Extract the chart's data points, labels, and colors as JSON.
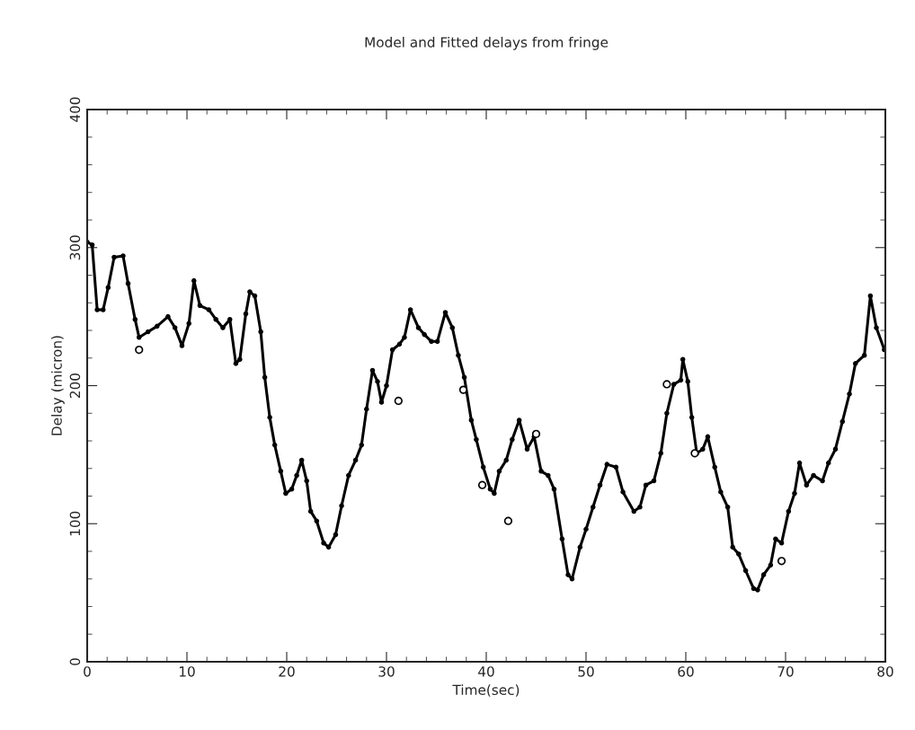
{
  "chart_data": {
    "type": "line",
    "title": "Model and Fitted delays from fringe",
    "xlabel": "Time(sec)",
    "ylabel": "Delay (micron)",
    "xlim": [
      0,
      80
    ],
    "xticks": [
      0,
      10,
      20,
      30,
      40,
      50,
      60,
      70,
      80
    ],
    "ylim": [
      0,
      400
    ],
    "yticks": [
      0,
      100,
      200,
      300,
      400
    ],
    "grid": false,
    "legend": false,
    "series": [
      {
        "color": "#000000",
        "marker": "circle",
        "line_style": "solid",
        "x": [
          0,
          0.5,
          1,
          1.6,
          2.1,
          2.7,
          3.6,
          4.1,
          4.8,
          5.2,
          6.1,
          7.0,
          8.1,
          8.8,
          9.5,
          10.2,
          10.7,
          11.3,
          12.2,
          12.9,
          13.6,
          14.3,
          14.9,
          15.3,
          15.9,
          16.3,
          16.8,
          17.4,
          17.8,
          18.3,
          18.8,
          19.4,
          19.9,
          20.5,
          21,
          21.5,
          22,
          22.4,
          23,
          23.7,
          24.2,
          24.9,
          25.5,
          26.2,
          26.9,
          27.5,
          28,
          28.6,
          29.1,
          29.5,
          30,
          30.6,
          31.3,
          31.8,
          32.4,
          33.2,
          33.8,
          34.5,
          35.1,
          35.9,
          36.6,
          37.2,
          37.8,
          38.5,
          39,
          39.7,
          40.4,
          40.8,
          41.3,
          42,
          42.6,
          43.3,
          44.1,
          44.8,
          45.5,
          46.2,
          46.8,
          47.6,
          48.2,
          48.6,
          49.4,
          50,
          50.7,
          51.4,
          52.1,
          53,
          53.7,
          54.8,
          55.4,
          56,
          56.8,
          57.5,
          58.1,
          58.8,
          59.5,
          59.7,
          60.2,
          60.6,
          61.1,
          61.7,
          62.2,
          62.9,
          63.5,
          64.2,
          64.7,
          65.3,
          66,
          66.8,
          67.2,
          67.8,
          68.5,
          69,
          69.6,
          70.3,
          70.9,
          71.4,
          72.1,
          72.8,
          73.7,
          74.3,
          75,
          75.7,
          76.4,
          77,
          77.9,
          78.5,
          79.1,
          79.9
        ],
        "values": [
          304,
          302,
          255,
          255,
          271,
          293,
          294,
          274,
          248,
          235,
          239,
          243,
          250,
          242,
          229,
          245,
          276,
          258,
          255,
          248,
          242,
          248,
          216,
          219,
          252,
          268,
          265,
          239,
          206,
          177,
          157,
          138,
          122,
          125,
          135,
          146,
          131,
          109,
          102,
          86,
          83,
          92,
          113,
          135,
          146,
          157,
          183,
          211,
          203,
          188,
          200,
          226,
          230,
          235,
          255,
          242,
          237,
          232,
          232,
          253,
          242,
          222,
          206,
          175,
          161,
          141,
          125,
          122,
          138,
          146,
          161,
          175,
          154,
          163,
          138,
          135,
          125,
          89,
          63,
          60,
          83,
          96,
          112,
          128,
          143,
          141,
          123,
          109,
          112,
          128,
          131,
          151,
          180,
          201,
          204,
          219,
          203,
          177,
          151,
          154,
          163,
          141,
          123,
          112,
          83,
          78,
          66,
          53,
          52,
          63,
          70,
          89,
          86,
          109,
          122,
          144,
          128,
          135,
          131,
          144,
          154,
          174,
          194,
          216,
          222,
          265,
          242,
          226
        ]
      },
      {
        "type": "scatter",
        "color": "#000000",
        "marker": "circle",
        "x": [
          5.2,
          31.2,
          37.7,
          39.6,
          42.2,
          45,
          58.1,
          60.9,
          69.6
        ],
        "values": [
          226,
          189,
          197,
          128,
          102,
          165,
          201,
          151,
          73
        ]
      }
    ]
  }
}
